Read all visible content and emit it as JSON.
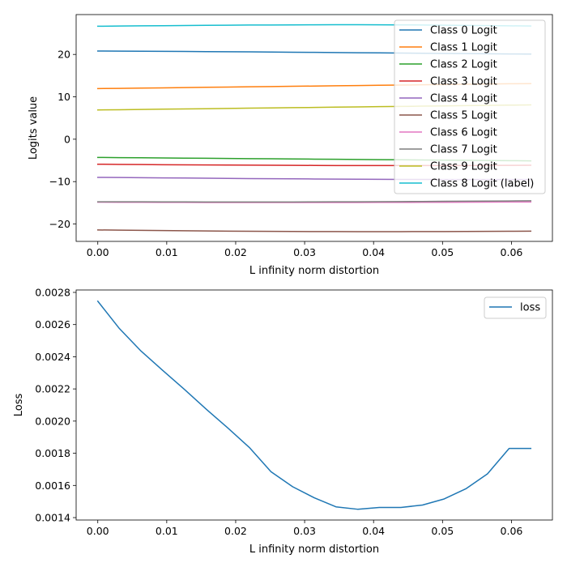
{
  "chart_data": [
    {
      "type": "line",
      "title": "",
      "xlabel": "L infinity norm distortion",
      "ylabel": "Logits value",
      "xlim": [
        -0.00314,
        0.06594
      ],
      "ylim": [
        -24.1,
        29.4
      ],
      "xticks": [
        0.0,
        0.01,
        0.02,
        0.03,
        0.04,
        0.05,
        0.06
      ],
      "xtick_labels": [
        "0.00",
        "0.01",
        "0.02",
        "0.03",
        "0.04",
        "0.05",
        "0.06"
      ],
      "yticks": [
        -20,
        -10,
        0,
        10,
        20
      ],
      "ytick_labels": [
        "−20",
        "−10",
        "0",
        "10",
        "20"
      ],
      "legend_position": "upper-right",
      "x": [
        0.0,
        0.00314,
        0.00628,
        0.00942,
        0.01256,
        0.0157,
        0.01884,
        0.02198,
        0.02512,
        0.02826,
        0.0314,
        0.03454,
        0.03768,
        0.04082,
        0.04396,
        0.0471,
        0.05024,
        0.05338,
        0.05652,
        0.05966,
        0.0628
      ],
      "series": [
        {
          "name": "Class 0 Logit",
          "color": "#1f77b4",
          "values": [
            20.8,
            20.78,
            20.76,
            20.73,
            20.7,
            20.67,
            20.64,
            20.6,
            20.56,
            20.52,
            20.48,
            20.44,
            20.4,
            20.36,
            20.32,
            20.28,
            20.24,
            20.2,
            20.16,
            20.12,
            20.08
          ]
        },
        {
          "name": "Class 1 Logit",
          "color": "#ff7f0e",
          "values": [
            11.95,
            12.0,
            12.06,
            12.12,
            12.18,
            12.24,
            12.3,
            12.36,
            12.42,
            12.48,
            12.54,
            12.6,
            12.66,
            12.72,
            12.78,
            12.84,
            12.9,
            12.96,
            13.02,
            13.08,
            13.1
          ]
        },
        {
          "name": "Class 2 Logit",
          "color": "#2ca02c",
          "values": [
            -4.3,
            -4.34,
            -4.38,
            -4.42,
            -4.46,
            -4.5,
            -4.54,
            -4.58,
            -4.62,
            -4.66,
            -4.7,
            -4.74,
            -4.78,
            -4.82,
            -4.86,
            -4.9,
            -4.94,
            -4.98,
            -5.02,
            -5.06,
            -5.1
          ]
        },
        {
          "name": "Class 3 Logit",
          "color": "#d62728",
          "values": [
            -5.9,
            -5.94,
            -5.98,
            -6.01,
            -6.04,
            -6.07,
            -6.1,
            -6.12,
            -6.14,
            -6.16,
            -6.18,
            -6.2,
            -6.21,
            -6.22,
            -6.22,
            -6.22,
            -6.21,
            -6.2,
            -6.18,
            -6.16,
            -6.14
          ]
        },
        {
          "name": "Class 4 Logit",
          "color": "#9467bd",
          "values": [
            -9.0,
            -9.04,
            -9.08,
            -9.12,
            -9.16,
            -9.2,
            -9.24,
            -9.28,
            -9.32,
            -9.35,
            -9.38,
            -9.41,
            -9.44,
            -9.46,
            -9.48,
            -9.49,
            -9.5,
            -9.5,
            -9.5,
            -9.5,
            -9.5
          ]
        },
        {
          "name": "Class 5 Logit",
          "color": "#8c564b",
          "values": [
            -21.4,
            -21.45,
            -21.5,
            -21.55,
            -21.6,
            -21.64,
            -21.68,
            -21.71,
            -21.74,
            -21.76,
            -21.78,
            -21.79,
            -21.8,
            -21.8,
            -21.8,
            -21.79,
            -21.78,
            -21.76,
            -21.74,
            -21.72,
            -21.7
          ]
        },
        {
          "name": "Class 6 Logit",
          "color": "#e377c2",
          "values": [
            -14.85,
            -14.87,
            -14.89,
            -14.9,
            -14.91,
            -14.92,
            -14.93,
            -14.93,
            -14.93,
            -14.93,
            -14.93,
            -14.93,
            -14.92,
            -14.91,
            -14.9,
            -14.89,
            -14.88,
            -14.86,
            -14.84,
            -14.82,
            -14.8
          ]
        },
        {
          "name": "Class 7 Logit",
          "color": "#7f7f7f",
          "values": [
            -14.75,
            -14.76,
            -14.77,
            -14.78,
            -14.79,
            -14.8,
            -14.81,
            -14.81,
            -14.81,
            -14.8,
            -14.79,
            -14.77,
            -14.75,
            -14.73,
            -14.71,
            -14.68,
            -14.65,
            -14.62,
            -14.59,
            -14.56,
            -14.52
          ]
        },
        {
          "name": "Class 9 Logit",
          "color": "#bcbd22",
          "values": [
            6.9,
            6.96,
            7.02,
            7.08,
            7.14,
            7.2,
            7.26,
            7.32,
            7.38,
            7.44,
            7.5,
            7.56,
            7.62,
            7.68,
            7.74,
            7.8,
            7.86,
            7.92,
            7.98,
            8.04,
            8.1
          ]
        },
        {
          "name": "Class 8 Logit (label)",
          "color": "#17becf",
          "values": [
            26.65,
            26.7,
            26.74,
            26.78,
            26.82,
            26.86,
            26.9,
            26.93,
            26.95,
            26.97,
            26.99,
            27.0,
            27.0,
            26.99,
            26.97,
            26.94,
            26.9,
            26.85,
            26.8,
            26.75,
            26.7
          ]
        }
      ]
    },
    {
      "type": "line",
      "title": "",
      "xlabel": "L infinity norm distortion",
      "ylabel": "Loss",
      "xlim": [
        -0.00314,
        0.06594
      ],
      "ylim": [
        0.001385,
        0.002815
      ],
      "xticks": [
        0.0,
        0.01,
        0.02,
        0.03,
        0.04,
        0.05,
        0.06
      ],
      "xtick_labels": [
        "0.00",
        "0.01",
        "0.02",
        "0.03",
        "0.04",
        "0.05",
        "0.06"
      ],
      "yticks": [
        0.0014,
        0.0016,
        0.0018,
        0.002,
        0.0022,
        0.0024,
        0.0026,
        0.0028
      ],
      "ytick_labels": [
        "0.0014",
        "0.0016",
        "0.0018",
        "0.0020",
        "0.0022",
        "0.0024",
        "0.0026",
        "0.0028"
      ],
      "legend_position": "upper-right",
      "x": [
        0.0,
        0.00314,
        0.00628,
        0.00942,
        0.01256,
        0.0157,
        0.01884,
        0.02198,
        0.02512,
        0.02826,
        0.0314,
        0.03454,
        0.03768,
        0.04082,
        0.04396,
        0.0471,
        0.05024,
        0.05338,
        0.05652,
        0.05966,
        0.0628
      ],
      "series": [
        {
          "name": "loss",
          "color": "#1f77b4",
          "values": [
            0.002745,
            0.002575,
            0.002435,
            0.002315,
            0.002197,
            0.002075,
            0.001958,
            0.001836,
            0.001685,
            0.001592,
            0.001523,
            0.001467,
            0.001452,
            0.001463,
            0.001463,
            0.001478,
            0.001516,
            0.001579,
            0.001672,
            0.00183,
            0.00183
          ]
        }
      ]
    }
  ]
}
